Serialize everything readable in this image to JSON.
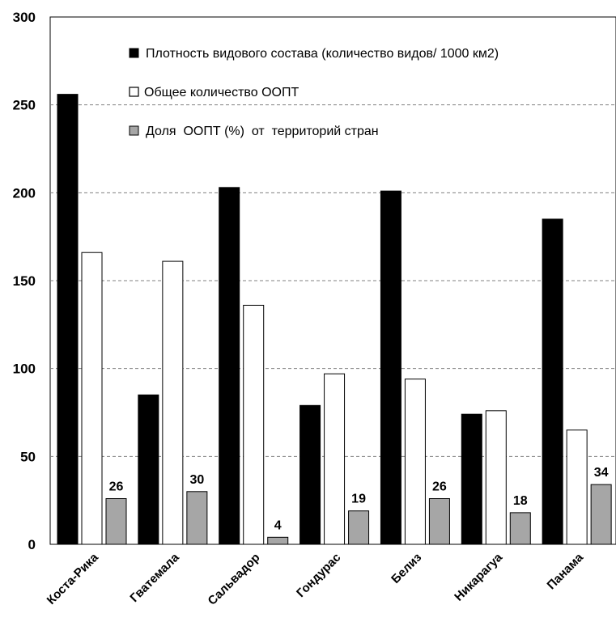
{
  "chart_data": {
    "type": "bar",
    "categories": [
      "Коста-Рика",
      "Гватемала",
      "Сальвадор",
      "Гондурас",
      "Белиз",
      "Никарагуа",
      "Панама"
    ],
    "series": [
      {
        "name": "Плотность видового состава (количество видов/ 1000 км2)",
        "color": "#000000",
        "values": [
          256,
          85,
          203,
          79,
          201,
          74,
          185
        ]
      },
      {
        "name": "Общее количество ООПТ",
        "color": "#ffffff",
        "values": [
          166,
          161,
          136,
          97,
          94,
          76,
          65
        ]
      },
      {
        "name": "Доля  ООПТ (%)  от  территорий стран",
        "color": "#a6a6a6",
        "values": [
          26,
          30,
          4,
          19,
          26,
          18,
          34
        ]
      }
    ],
    "data_labels_series": 2,
    "data_labels": [
      "26",
      "30",
      "4",
      "19",
      "26",
      "18",
      "34"
    ],
    "y_ticks": [
      "0",
      "50",
      "100",
      "150",
      "200",
      "250",
      "300"
    ],
    "ylim": [
      0,
      300
    ],
    "grid": true,
    "legend_position": "top-right",
    "title": "",
    "xlabel": "",
    "ylabel": ""
  }
}
